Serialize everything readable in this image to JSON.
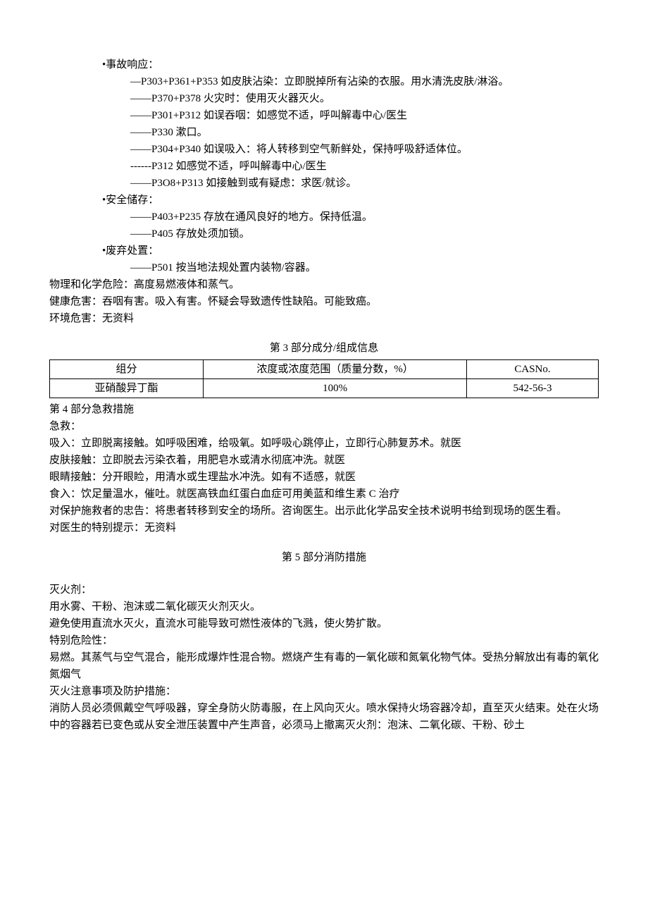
{
  "bullets": {
    "accident": {
      "title": "•事故响应：",
      "lines": [
        "—P303+P361+P353 如皮肤沾染：立即脱掉所有沾染的衣服。用水清洗皮肤/淋浴。",
        "——P370+P378 火灾时：使用灭火器灭火。",
        "——P301+P312 如误吞咽：如感觉不适，呼叫解毒中心/医生",
        "——P330 漱口。",
        "——P304+P340 如误吸入：将人转移到空气新鲜处，保持呼吸舒适体位。",
        "------P312 如感觉不适，呼叫解毒中心/医生",
        "——P3O8+P313 如接触到或有疑虑：求医/就诊。"
      ]
    },
    "storage": {
      "title": "•安全储存：",
      "lines": [
        "——P403+P235 存放在通风良好的地方。保持低温。",
        "——P405 存放处须加锁。"
      ]
    },
    "disposal": {
      "title": "•废弃处置：",
      "lines": [
        "——P501 按当地法规处置内装物/容器。"
      ]
    }
  },
  "infoLines": {
    "physChem": "物理和化学危险：高度易燃液体和蒸气。",
    "health": "健康危害：吞咽有害。吸入有害。怀疑会导致遗传性缺陷。可能致癌。",
    "env": "环境危害：无资料"
  },
  "section3": {
    "title": "第 3 部分成分/组成信息",
    "headers": {
      "a": "组分",
      "b": "浓度或浓度范围（质量分数，%）",
      "c": "CASNo."
    },
    "row": {
      "a": "亚硝酸异丁酯",
      "b": "100%",
      "c": "542-56-3"
    }
  },
  "section4": {
    "title": "第 4 部分急救措施",
    "label": "急救：",
    "lines": [
      "吸入：立即脱离接触。如呼吸困难，给吸氧。如呼吸心跳停止，立即行心肺复苏术。就医",
      "皮肤接触：立即脱去污染衣着，用肥皂水或清水彻底冲洗。就医",
      "眼睛接触：分开眼睑，用清水或生理盐水冲洗。如有不适感，就医",
      "食入：饮足量温水，催吐。就医高铁血红蛋白血症可用美蓝和维生素 C 治疗",
      "对保护施救者的忠告：将患者转移到安全的场所。咨询医生。出示此化学品安全技术说明书给到现场的医生看。",
      "对医生的特别提示：无资料"
    ]
  },
  "section5": {
    "title": "第 5 部分消防措施",
    "labelA": "灭火剂：",
    "lineA1": "用水雾、干粉、泡沫或二氧化碳灭火剂灭火。",
    "lineA2": "避免使用直流水灭火，直流水可能导致可燃性液体的飞溅，使火势扩散。",
    "labelB": "特别危险性：",
    "lineB1": "易燃。其蒸气与空气混合，能形成爆炸性混合物。燃烧产生有毒的一氧化碳和氮氧化物气体。受热分解放出有毒的氧化氮烟气",
    "labelC": "灭火注意事项及防护措施：",
    "lineC1": "消防人员必须佩戴空气呼吸器，穿全身防火防毒服，在上风向灭火。喷水保持火场容器冷却，直至灭火结束。处在火场中的容器若已变色或从安全泄压装置中产生声音，必须马上撤离灭火剂：泡沫、二氧化碳、干粉、砂土"
  }
}
